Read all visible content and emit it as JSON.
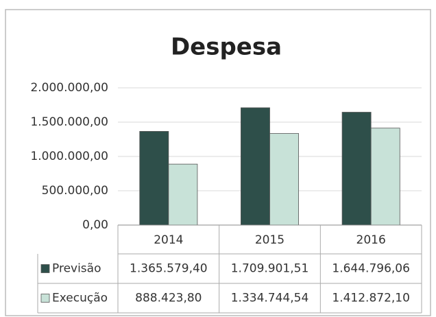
{
  "chart_data": {
    "type": "bar",
    "title": "Despesa",
    "categories": [
      "2014",
      "2015",
      "2016"
    ],
    "series": [
      {
        "name": "Previsão",
        "color": "#2e4f4a",
        "values": [
          1365579.4,
          1709901.51,
          1644796.06
        ],
        "value_labels": [
          "1.365.579,40",
          "1.709.901,51",
          "1.644.796,06"
        ]
      },
      {
        "name": "Execução",
        "color": "#c8e2d8",
        "values": [
          888423.8,
          1334744.54,
          1412872.1
        ],
        "value_labels": [
          "888.423,80",
          "1.334.744,54",
          "1.412.872,10"
        ]
      }
    ],
    "ylim": [
      0,
      2000000
    ],
    "yticks": [
      {
        "value": 0,
        "label": "0,00"
      },
      {
        "value": 500000,
        "label": "500.000,00"
      },
      {
        "value": 1000000,
        "label": "1.000.000,00"
      },
      {
        "value": 1500000,
        "label": "1.500.000,00"
      },
      {
        "value": 2000000,
        "label": "2.000.000,00"
      }
    ],
    "grid": true,
    "data_table": true
  }
}
